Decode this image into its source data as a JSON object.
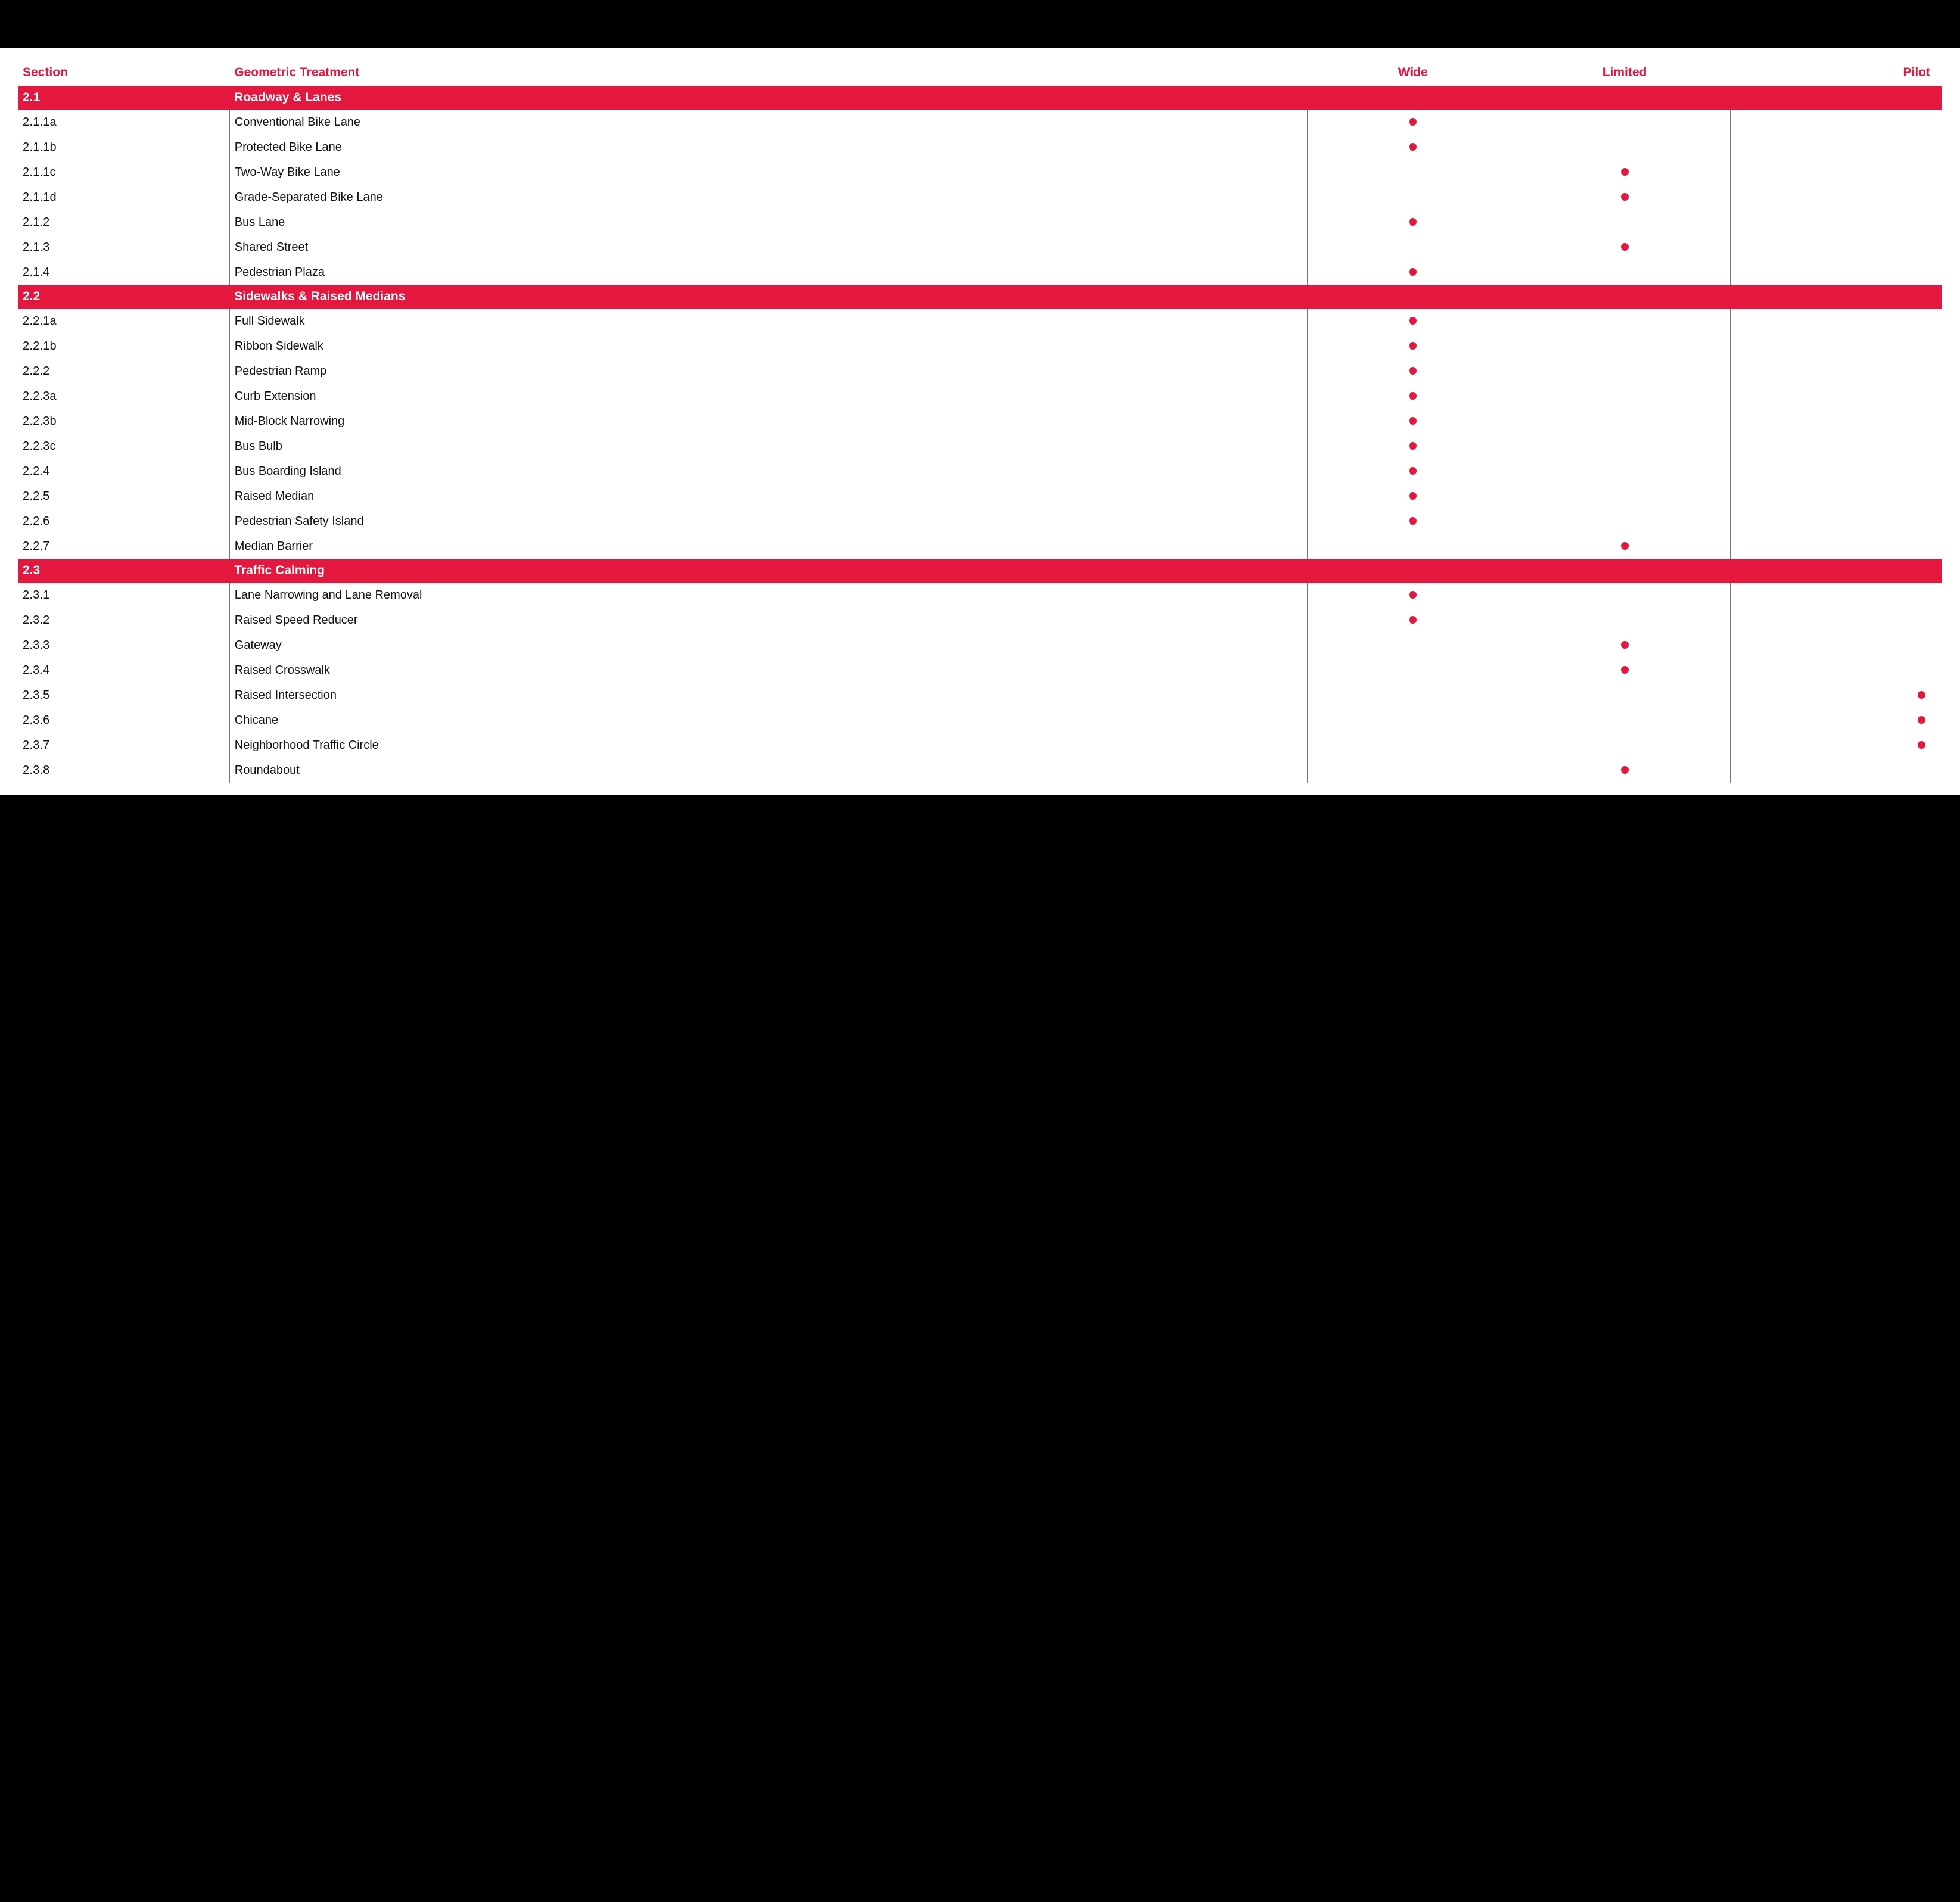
{
  "colors": {
    "accent": "#e4173e",
    "header_text": "#e4173e",
    "group_row_bg": "#e4173e",
    "group_row_text": "#ffffff",
    "dot": "#e4173e",
    "row_border": "#777777",
    "body_text": "#111111",
    "page_bg": "#ffffff",
    "outer_bg": "#000000"
  },
  "typography": {
    "header_fontsize": 21,
    "group_fontsize": 21,
    "row_fontsize": 20,
    "header_weight": 700,
    "group_weight": 700
  },
  "columns": {
    "section": "Section",
    "treatment": "Geometric Treatment",
    "wide": "Wide",
    "limited": "Limited",
    "pilot": "Pilot"
  },
  "groups": [
    {
      "num": "2.1",
      "title": "Roadway & Lanes",
      "rows": [
        {
          "section": "2.1.1a",
          "treatment": "Conventional Bike Lane",
          "wide": true,
          "limited": false,
          "pilot": false
        },
        {
          "section": "2.1.1b",
          "treatment": "Protected Bike Lane",
          "wide": true,
          "limited": false,
          "pilot": false
        },
        {
          "section": "2.1.1c",
          "treatment": "Two-Way Bike Lane",
          "wide": false,
          "limited": true,
          "pilot": false
        },
        {
          "section": "2.1.1d",
          "treatment": "Grade-Separated Bike Lane",
          "wide": false,
          "limited": true,
          "pilot": false
        },
        {
          "section": "2.1.2",
          "treatment": "Bus Lane",
          "wide": true,
          "limited": false,
          "pilot": false
        },
        {
          "section": "2.1.3",
          "treatment": "Shared Street",
          "wide": false,
          "limited": true,
          "pilot": false
        },
        {
          "section": "2.1.4",
          "treatment": "Pedestrian Plaza",
          "wide": true,
          "limited": false,
          "pilot": false
        }
      ]
    },
    {
      "num": "2.2",
      "title": "Sidewalks & Raised Medians",
      "rows": [
        {
          "section": "2.2.1a",
          "treatment": "Full Sidewalk",
          "wide": true,
          "limited": false,
          "pilot": false
        },
        {
          "section": "2.2.1b",
          "treatment": "Ribbon Sidewalk",
          "wide": true,
          "limited": false,
          "pilot": false
        },
        {
          "section": "2.2.2",
          "treatment": "Pedestrian Ramp",
          "wide": true,
          "limited": false,
          "pilot": false
        },
        {
          "section": "2.2.3a",
          "treatment": "Curb Extension",
          "wide": true,
          "limited": false,
          "pilot": false
        },
        {
          "section": "2.2.3b",
          "treatment": "Mid-Block Narrowing",
          "wide": true,
          "limited": false,
          "pilot": false
        },
        {
          "section": "2.2.3c",
          "treatment": "Bus Bulb",
          "wide": true,
          "limited": false,
          "pilot": false
        },
        {
          "section": "2.2.4",
          "treatment": "Bus Boarding Island",
          "wide": true,
          "limited": false,
          "pilot": false
        },
        {
          "section": "2.2.5",
          "treatment": "Raised Median",
          "wide": true,
          "limited": false,
          "pilot": false
        },
        {
          "section": "2.2.6",
          "treatment": "Pedestrian Safety Island",
          "wide": true,
          "limited": false,
          "pilot": false
        },
        {
          "section": "2.2.7",
          "treatment": "Median Barrier",
          "wide": false,
          "limited": true,
          "pilot": false
        }
      ]
    },
    {
      "num": "2.3",
      "title": "Traffic Calming",
      "rows": [
        {
          "section": "2.3.1",
          "treatment": "Lane Narrowing and Lane Removal",
          "wide": true,
          "limited": false,
          "pilot": false
        },
        {
          "section": "2.3.2",
          "treatment": "Raised Speed Reducer",
          "wide": true,
          "limited": false,
          "pilot": false
        },
        {
          "section": "2.3.3",
          "treatment": "Gateway",
          "wide": false,
          "limited": true,
          "pilot": false
        },
        {
          "section": "2.3.4",
          "treatment": "Raised Crosswalk",
          "wide": false,
          "limited": true,
          "pilot": false
        },
        {
          "section": "2.3.5",
          "treatment": "Raised Intersection",
          "wide": false,
          "limited": false,
          "pilot": true
        },
        {
          "section": "2.3.6",
          "treatment": "Chicane",
          "wide": false,
          "limited": false,
          "pilot": true
        },
        {
          "section": "2.3.7",
          "treatment": "Neighborhood Traffic Circle",
          "wide": false,
          "limited": false,
          "pilot": true
        },
        {
          "section": "2.3.8",
          "treatment": "Roundabout",
          "wide": false,
          "limited": true,
          "pilot": false
        }
      ]
    }
  ]
}
